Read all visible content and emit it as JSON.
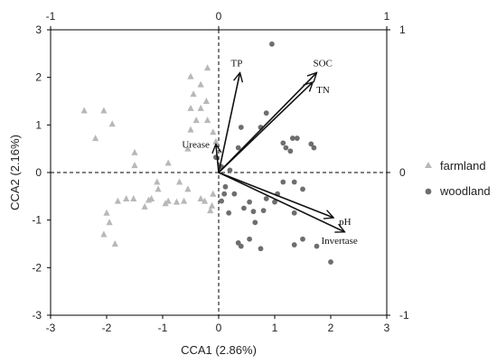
{
  "chart_data": {
    "type": "scatter",
    "title": "",
    "xlabel": "CCA1 (2.86%)",
    "ylabel": "CCA2 (2.16%)",
    "xlim": [
      -3,
      3
    ],
    "ylim": [
      -3,
      3
    ],
    "x_ticks": [
      "-3",
      "-2",
      "-1",
      "0",
      "1",
      "2",
      "3"
    ],
    "y_ticks": [
      "3",
      "2",
      "1",
      "0",
      "-1",
      "-2",
      "-3"
    ],
    "top_ticks": [
      "-1",
      "0",
      "1"
    ],
    "right_ticks": [
      "1",
      "0",
      "-1"
    ],
    "secondary_range": [
      -1,
      1
    ],
    "grid": false,
    "zero_lines": "dashed",
    "legend_position": "right",
    "series": [
      {
        "name": "farmland",
        "marker": "triangle",
        "color": "#b8b8b8",
        "points": [
          [
            -2.4,
            1.3
          ],
          [
            -2.05,
            1.3
          ],
          [
            -2.2,
            0.72
          ],
          [
            -1.9,
            1.02
          ],
          [
            -1.5,
            0.42
          ],
          [
            -1.5,
            0.15
          ],
          [
            -1.52,
            -0.55
          ],
          [
            -1.65,
            -0.55
          ],
          [
            -1.32,
            -0.72
          ],
          [
            -1.25,
            -0.58
          ],
          [
            -1.1,
            -0.2
          ],
          [
            -1.08,
            -0.35
          ],
          [
            -1.2,
            -0.55
          ],
          [
            -0.9,
            -0.6
          ],
          [
            -0.75,
            -0.62
          ],
          [
            -0.62,
            -0.6
          ],
          [
            -0.55,
            -0.35
          ],
          [
            -0.32,
            -0.55
          ],
          [
            -0.25,
            -0.6
          ],
          [
            -0.12,
            -0.7
          ],
          [
            -0.7,
            -0.2
          ],
          [
            -0.9,
            0.2
          ],
          [
            -0.55,
            0.5
          ],
          [
            -0.5,
            0.9
          ],
          [
            -0.4,
            1.1
          ],
          [
            -0.32,
            1.35
          ],
          [
            -0.5,
            1.35
          ],
          [
            -0.45,
            1.65
          ],
          [
            -0.32,
            1.85
          ],
          [
            -0.5,
            2.02
          ],
          [
            -0.2,
            2.2
          ],
          [
            -0.22,
            1.5
          ],
          [
            -0.2,
            1.1
          ],
          [
            -0.1,
            0.85
          ],
          [
            -0.05,
            0.65
          ],
          [
            -0.95,
            -0.65
          ],
          [
            -2.0,
            -0.85
          ],
          [
            -1.95,
            -1.05
          ],
          [
            -2.05,
            -1.3
          ],
          [
            -1.85,
            -1.5
          ],
          [
            -1.8,
            -0.6
          ],
          [
            -0.15,
            -0.8
          ],
          [
            -0.1,
            -0.45
          ]
        ]
      },
      {
        "name": "woodland",
        "marker": "circle",
        "color": "#6e6e6e",
        "points": [
          [
            0.95,
            2.7
          ],
          [
            0.85,
            1.25
          ],
          [
            0.75,
            0.95
          ],
          [
            0.35,
            0.52
          ],
          [
            0.4,
            0.95
          ],
          [
            1.15,
            0.62
          ],
          [
            1.2,
            0.52
          ],
          [
            1.32,
            0.72
          ],
          [
            1.4,
            0.72
          ],
          [
            1.28,
            0.45
          ],
          [
            1.65,
            0.6
          ],
          [
            1.7,
            0.52
          ],
          [
            1.15,
            -0.2
          ],
          [
            1.35,
            -0.2
          ],
          [
            1.05,
            -0.45
          ],
          [
            0.85,
            -0.55
          ],
          [
            0.55,
            -0.62
          ],
          [
            0.8,
            -0.8
          ],
          [
            0.62,
            -0.82
          ],
          [
            1.35,
            -0.85
          ],
          [
            0.65,
            -1.05
          ],
          [
            0.55,
            -1.4
          ],
          [
            0.75,
            -1.6
          ],
          [
            0.35,
            -1.48
          ],
          [
            0.4,
            -1.55
          ],
          [
            1.5,
            -1.4
          ],
          [
            1.35,
            -1.52
          ],
          [
            1.75,
            -1.55
          ],
          [
            2.0,
            -1.88
          ],
          [
            0.1,
            -0.45
          ],
          [
            0.12,
            -0.3
          ],
          [
            0.05,
            -0.6
          ],
          [
            0.18,
            -0.85
          ],
          [
            0.28,
            -0.45
          ],
          [
            0.45,
            -0.75
          ],
          [
            0.2,
            0.05
          ],
          [
            -0.05,
            0.32
          ],
          [
            0.05,
            0.12
          ],
          [
            1.5,
            -0.35
          ],
          [
            1.0,
            -0.62
          ]
        ]
      }
    ],
    "vectors": [
      {
        "label": "TP",
        "x": 0.38,
        "y": 2.1
      },
      {
        "label": "SOC",
        "x": 1.75,
        "y": 2.1
      },
      {
        "label": "TN",
        "x": 1.68,
        "y": 1.9
      },
      {
        "label": "Urease",
        "x": -0.05,
        "y": 0.6
      },
      {
        "label": "pH",
        "x": 2.05,
        "y": -0.95
      },
      {
        "label": "Invertase",
        "x": 2.25,
        "y": -1.25
      }
    ]
  },
  "legend": {
    "items": [
      {
        "label": "farmland",
        "marker": "triangle",
        "color": "#b8b8b8"
      },
      {
        "label": "woodland",
        "marker": "circle",
        "color": "#6e6e6e"
      }
    ]
  }
}
